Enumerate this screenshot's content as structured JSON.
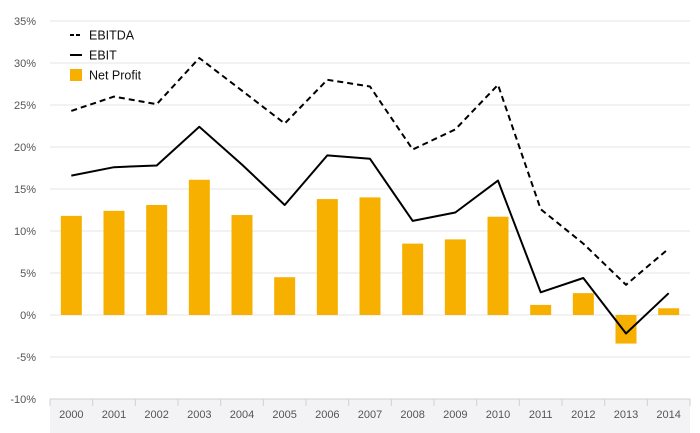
{
  "chart_data": {
    "type": "bar",
    "categories": [
      "2000",
      "2001",
      "2002",
      "2003",
      "2004",
      "2005",
      "2006",
      "2007",
      "2008",
      "2009",
      "2010",
      "2011",
      "2012",
      "2013",
      "2014"
    ],
    "series": [
      {
        "name": "EBITDA",
        "kind": "line",
        "style": "dashed",
        "color": "#000000",
        "values": [
          24.3,
          26.0,
          25.1,
          30.6,
          26.7,
          22.8,
          28.0,
          27.2,
          19.7,
          22.1,
          27.4,
          12.6,
          8.5,
          3.6,
          7.9
        ]
      },
      {
        "name": "EBIT",
        "kind": "line",
        "style": "solid",
        "color": "#000000",
        "values": [
          16.6,
          17.6,
          17.8,
          22.4,
          17.9,
          13.1,
          19.0,
          18.6,
          11.2,
          12.2,
          16.0,
          2.7,
          4.4,
          -2.2,
          2.6
        ]
      },
      {
        "name": "Net Profit",
        "kind": "bar",
        "color": "#F7B000",
        "values": [
          11.8,
          12.4,
          13.1,
          16.1,
          11.9,
          4.5,
          13.8,
          14.0,
          8.5,
          9.0,
          11.7,
          1.2,
          2.6,
          -3.4,
          0.8
        ]
      }
    ],
    "yticks": [
      "35%",
      "30%",
      "25%",
      "20%",
      "15%",
      "10%",
      "5%",
      "0%",
      "-5%",
      "-10%"
    ],
    "ylim": [
      -10,
      35
    ],
    "grid": true,
    "legend": "top-left",
    "title": "",
    "xlabel": "",
    "ylabel": ""
  }
}
